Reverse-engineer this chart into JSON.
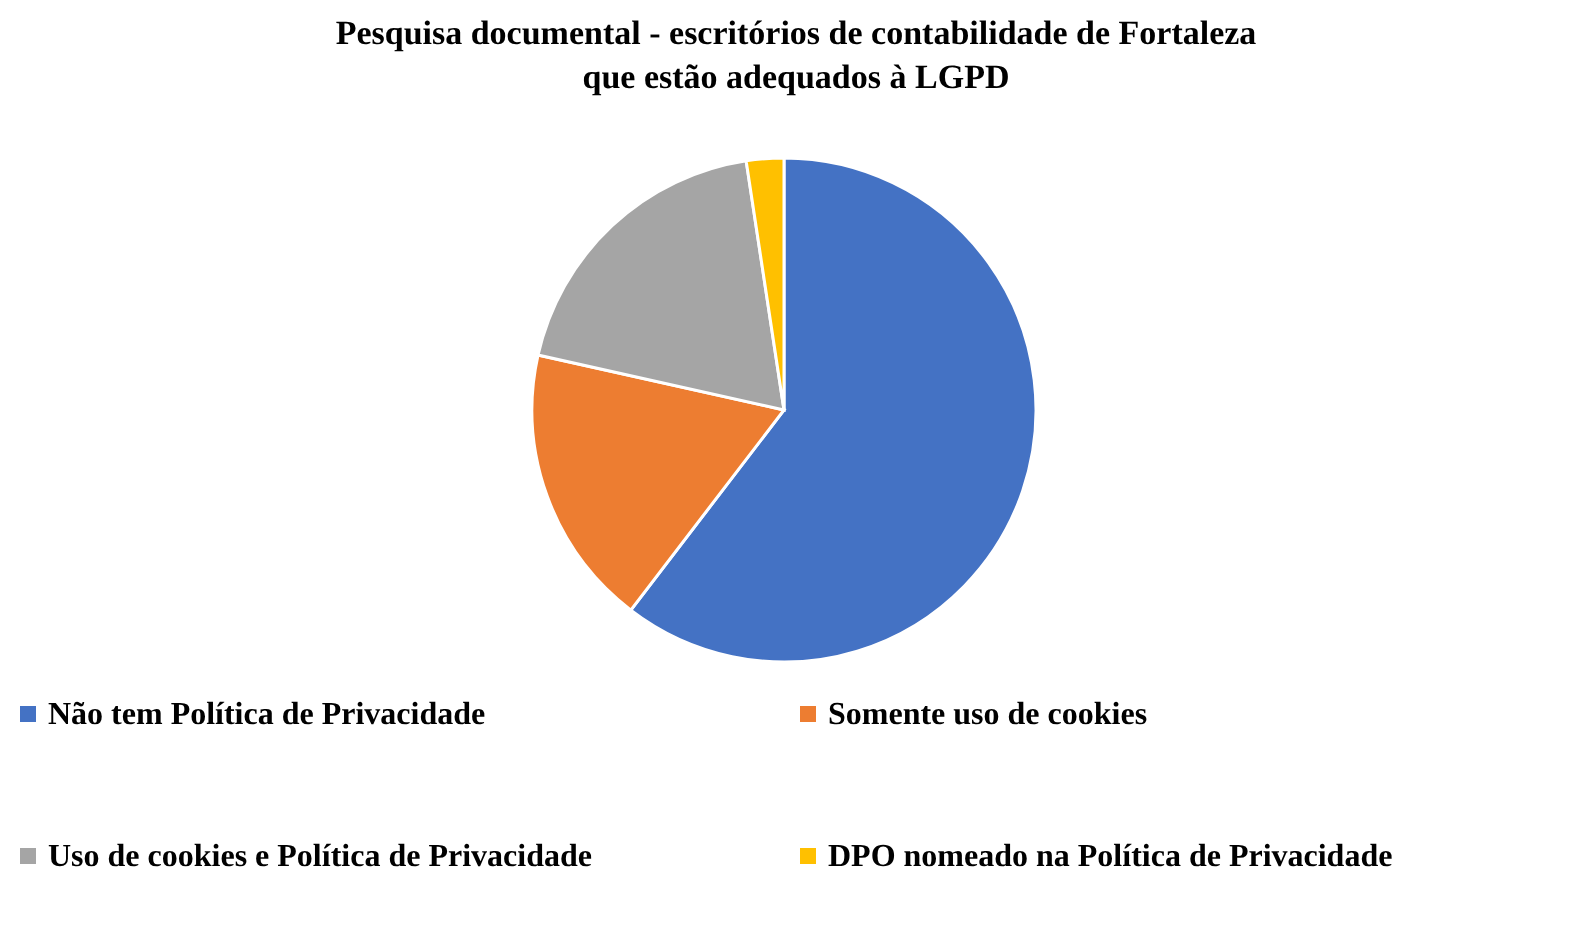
{
  "chart_data": {
    "type": "pie",
    "title": "Pesquisa documental - escritórios de contabilidade de Fortaleza\nque estão adequados à LGPD",
    "categories": [
      "Não tem Política de Privacidade",
      "Somente uso de cookies",
      "Uso de cookies e Política de Privacidade",
      "DPO nomeado na Política de Privacidade"
    ],
    "values": [
      60.4,
      18.1,
      19.1,
      2.4
    ],
    "colors": [
      "#4472c4",
      "#ed7d31",
      "#a5a5a5",
      "#ffc000"
    ],
    "legend": "bottom"
  }
}
